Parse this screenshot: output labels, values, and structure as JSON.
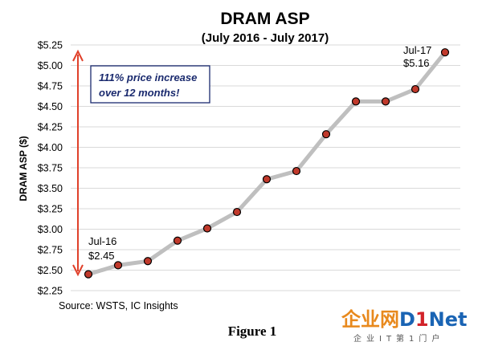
{
  "chart_data": {
    "type": "line",
    "title": "DRAM ASP",
    "subtitle": "(July 2016 - July 2017)",
    "ylabel": "DRAM ASP ($)",
    "xlabel": "",
    "ylim": [
      2.25,
      5.25
    ],
    "yticks": [
      2.25,
      2.5,
      2.75,
      3.0,
      3.25,
      3.5,
      3.75,
      4.0,
      4.25,
      4.5,
      4.75,
      5.0,
      5.25
    ],
    "ytick_labels": [
      "$2.25",
      "$2.50",
      "$2.75",
      "$3.00",
      "$3.25",
      "$3.50",
      "$3.75",
      "$4.00",
      "$4.25",
      "$4.50",
      "$4.75",
      "$5.00",
      "$5.25"
    ],
    "grid": "horizontal",
    "series": [
      {
        "values": [
          2.45,
          2.56,
          2.61,
          2.86,
          3.01,
          3.21,
          3.61,
          3.71,
          4.16,
          4.56,
          4.56,
          4.71,
          5.16
        ]
      }
    ],
    "annotations": {
      "box_line1": "111% price increase",
      "box_line2": "over 12 months!",
      "start_label_line1": "Jul-16",
      "start_label_line2": "$2.45",
      "end_label_line1": "Jul-17",
      "end_label_line2": "$5.16"
    },
    "source": "Source:  WSTS, IC Insights",
    "colors": {
      "line": "#bfbfbf",
      "marker": "#c0392b",
      "marker_edge": "#000000",
      "arrow": "#e0402a",
      "grid": "#d9d9d9",
      "box_border": "#1a2a6e"
    }
  },
  "caption": "Figure 1",
  "watermark": {
    "brand_main": "企业网",
    "brand_d": "D",
    "brand_1": "1",
    "brand_net": "Net",
    "tagline": "企业IT第1门户"
  }
}
